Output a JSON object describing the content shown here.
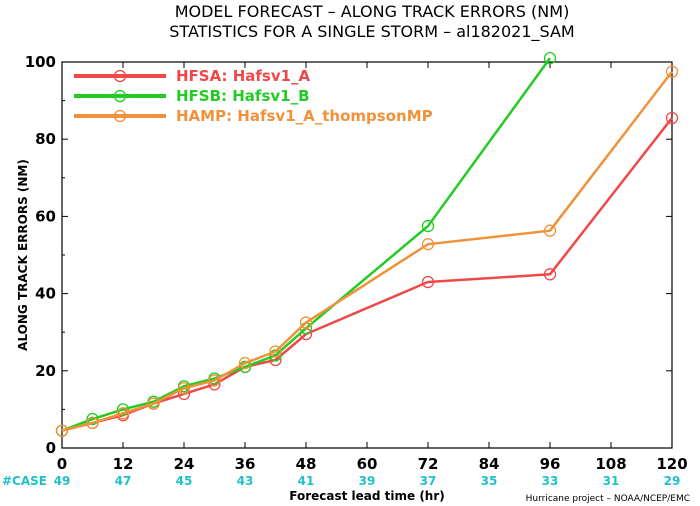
{
  "title_line1": "MODEL FORECAST – ALONG TRACK ERRORS (NM)",
  "title_line2": "STATISTICS FOR A SINGLE STORM – al182021_SAM",
  "credit": "Hurricane project – NOAA/NCEP/EMC",
  "case_label": "#CASE",
  "colors": {
    "hfsa": "#f04848",
    "hfsb": "#22cc22",
    "hamp": "#f0923a",
    "case": "#20c0c8"
  },
  "chart_data": {
    "type": "line",
    "title": "MODEL FORECAST – ALONG TRACK ERRORS (NM)",
    "subtitle": "STATISTICS FOR A SINGLE STORM – al182021_SAM",
    "xlabel": "Forecast lead time (hr)",
    "ylabel": "ALONG TRACK ERRORS (NM)",
    "xlim": [
      0,
      120
    ],
    "ylim": [
      0,
      100
    ],
    "x_ticks": [
      0,
      12,
      24,
      36,
      48,
      60,
      72,
      84,
      96,
      108,
      120
    ],
    "y_ticks": [
      0,
      20,
      40,
      60,
      80,
      100
    ],
    "cases": [
      "49",
      "47",
      "45",
      "43",
      "41",
      "39",
      "37",
      "35",
      "33",
      "31",
      "29"
    ],
    "legend_position": "top-left",
    "grid": false,
    "series": [
      {
        "name": "HFSA: Hafsv1_A",
        "color": "#f04848",
        "x": [
          0,
          6,
          12,
          18,
          24,
          30,
          36,
          42,
          48,
          72,
          96,
          120
        ],
        "y": [
          4.5,
          6.5,
          8.5,
          11.5,
          14.0,
          16.5,
          21.0,
          22.8,
          29.5,
          43.0,
          45.0,
          85.5
        ]
      },
      {
        "name": "HFSB: Hafsv1_B",
        "color": "#22cc22",
        "x": [
          0,
          6,
          12,
          18,
          24,
          30,
          36,
          42,
          48,
          72,
          96
        ],
        "y": [
          4.5,
          7.5,
          10.0,
          12.0,
          16.0,
          18.0,
          21.0,
          24.0,
          31.0,
          57.5,
          101.0
        ]
      },
      {
        "name": "HAMP: Hafsv1_A_thompsonMP",
        "color": "#f0923a",
        "x": [
          0,
          6,
          12,
          18,
          24,
          30,
          36,
          42,
          48,
          72,
          96,
          120
        ],
        "y": [
          4.5,
          6.5,
          9.0,
          11.5,
          15.5,
          17.5,
          22.0,
          25.0,
          32.5,
          52.8,
          56.3,
          97.5
        ]
      }
    ]
  }
}
